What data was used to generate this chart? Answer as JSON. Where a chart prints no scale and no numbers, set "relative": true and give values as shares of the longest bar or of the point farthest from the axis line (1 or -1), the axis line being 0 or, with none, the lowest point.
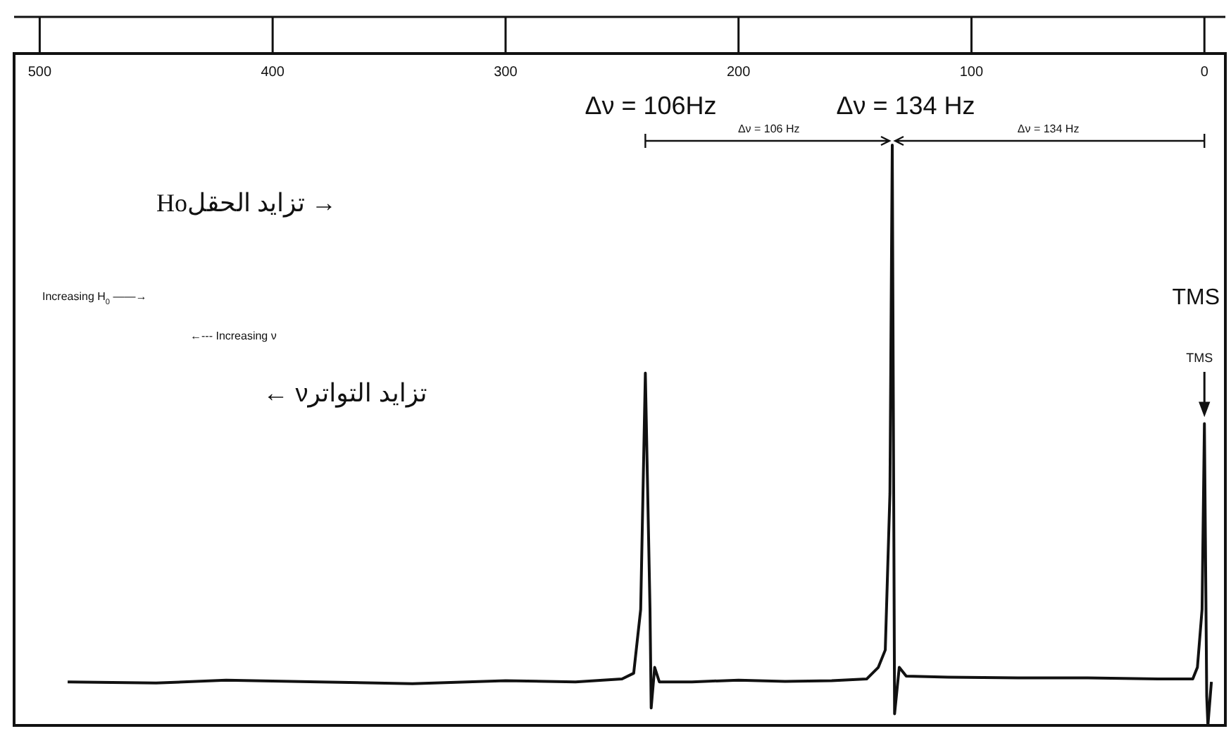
{
  "chart_data": {
    "type": "line",
    "relative": true,
    "xlim": [
      511,
      -9
    ],
    "xticks": [
      500,
      400,
      300,
      200,
      100,
      0
    ],
    "series": [
      {
        "color": "#111111",
        "x": [
          488,
          450,
          420,
          380,
          340,
          300,
          270,
          250,
          245,
          242,
          240,
          238,
          237.5,
          236,
          234,
          220,
          200,
          180,
          160,
          145,
          140,
          137,
          135,
          134,
          133,
          131,
          128,
          110,
          80,
          50,
          20,
          5,
          3,
          1,
          0,
          -1,
          -1.5,
          -3
        ],
        "values": [
          0.075,
          0.073,
          0.078,
          0.075,
          0.072,
          0.077,
          0.075,
          0.08,
          0.09,
          0.2,
          0.607,
          0.2,
          0.03,
          0.1,
          0.075,
          0.075,
          0.078,
          0.076,
          0.077,
          0.08,
          0.1,
          0.13,
          0.4,
          1,
          0.02,
          0.1,
          0.085,
          0.083,
          0.082,
          0.082,
          0.08,
          0.08,
          0.1,
          0.2,
          0.52,
          0.05,
          0,
          0.075
        ]
      }
    ],
    "annotations": [
      "Δν = 106Hz",
      "Δν = 134 Hz",
      "Δν = 106 Hz",
      "Δν = 134 Hz",
      "→ تزايد الحقلHo",
      "Increasing H$_{0}$ ——→",
      "←--- Increasing ν",
      "تزايد التواترν ←",
      "TMS",
      "TMS"
    ]
  }
}
